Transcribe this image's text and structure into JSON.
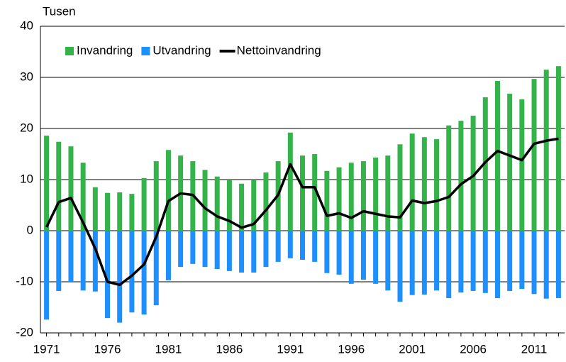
{
  "chart_data": {
    "type": "bar",
    "y_axis_label": "Tusen",
    "categories": [
      "1971",
      null,
      null,
      null,
      null,
      "1976",
      null,
      null,
      null,
      null,
      "1981",
      null,
      null,
      null,
      null,
      "1986",
      null,
      null,
      null,
      null,
      "1991",
      null,
      null,
      null,
      null,
      "1996",
      null,
      null,
      null,
      null,
      "2001",
      null,
      null,
      null,
      null,
      "2006",
      null,
      null,
      null,
      null,
      "2011",
      null,
      null
    ],
    "series": [
      {
        "name": "Invandring",
        "color": "#34b34a",
        "values": [
          18.6,
          17.4,
          16.5,
          13.3,
          8.5,
          7.4,
          7.5,
          7.2,
          10.3,
          13.6,
          15.8,
          14.7,
          13.6,
          11.9,
          10.6,
          10.0,
          9.2,
          10.0,
          11.4,
          13.6,
          19.2,
          14.7,
          15.0,
          11.7,
          12.4,
          13.3,
          13.6,
          14.3,
          14.7,
          16.9,
          19.0,
          18.3,
          17.9,
          20.6,
          21.5,
          22.5,
          26.1,
          29.3,
          26.8,
          25.7,
          29.7,
          31.5,
          32.2
        ]
      },
      {
        "name": "Utvandring",
        "color": "#1e8fff",
        "values": [
          -17.4,
          -11.8,
          -10.0,
          -11.7,
          -11.9,
          -17.1,
          -18.0,
          -16.0,
          -16.4,
          -14.6,
          -9.7,
          -7.1,
          -6.5,
          -7.1,
          -7.5,
          -7.9,
          -8.2,
          -8.2,
          -7.1,
          -6.1,
          -5.4,
          -5.7,
          -6.1,
          -8.3,
          -8.6,
          -10.4,
          -9.6,
          -10.4,
          -11.7,
          -13.9,
          -12.6,
          -12.5,
          -11.7,
          -13.2,
          -12.1,
          -11.8,
          -12.2,
          -13.2,
          -11.8,
          -11.4,
          -12.4,
          -13.3,
          -13.2
        ]
      },
      {
        "name": "Nettoinvandring",
        "color": "#000000",
        "type": "line",
        "values": [
          0.7,
          5.6,
          6.4,
          1.6,
          -3.5,
          -10.0,
          -10.6,
          -8.8,
          -6.6,
          -1.2,
          5.8,
          7.3,
          7.0,
          4.4,
          2.8,
          1.9,
          0.6,
          1.3,
          4.0,
          7.0,
          13.0,
          8.5,
          8.5,
          2.9,
          3.4,
          2.5,
          3.8,
          3.3,
          2.8,
          2.6,
          5.9,
          5.4,
          5.8,
          6.6,
          9.1,
          10.7,
          13.4,
          15.6,
          14.7,
          13.8,
          17.0,
          17.6,
          18.0
        ]
      }
    ],
    "ylim": [
      -20,
      40
    ],
    "yticks": [
      -20,
      -10,
      0,
      10,
      20,
      30,
      40
    ],
    "grid": true,
    "legend": "top-left"
  }
}
